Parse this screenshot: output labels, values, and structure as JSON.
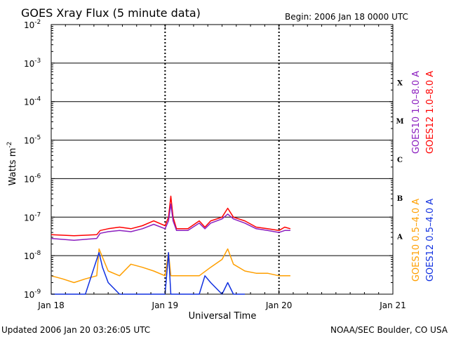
{
  "chart_data": {
    "type": "line",
    "title": "GOES Xray Flux (5 minute data)",
    "begin_label": "Begin:  2006 Jan 18 0000 UTC",
    "xlabel": "Universal Time",
    "ylabel": "Watts m",
    "ylabel_exponent": "-2",
    "y_scale": "log",
    "ylim": [
      1e-09,
      0.01
    ],
    "x_ticks": [
      {
        "label": "Jan 18",
        "day": 0
      },
      {
        "label": "Jan 19",
        "day": 1
      },
      {
        "label": "Jan 20",
        "day": 2
      },
      {
        "label": "Jan 21",
        "day": 3
      }
    ],
    "y_ticks": [
      {
        "base": "10",
        "exp": "-9",
        "value": -9
      },
      {
        "base": "10",
        "exp": "-8",
        "value": -8
      },
      {
        "base": "10",
        "exp": "-7",
        "value": -7
      },
      {
        "base": "10",
        "exp": "-6",
        "value": -6
      },
      {
        "base": "10",
        "exp": "-5",
        "value": -5
      },
      {
        "base": "10",
        "exp": "-4",
        "value": -4
      },
      {
        "base": "10",
        "exp": "-3",
        "value": -3
      },
      {
        "base": "10",
        "exp": "-2",
        "value": -2
      }
    ],
    "flare_classes": [
      {
        "label": "A",
        "value": -7.5
      },
      {
        "label": "B",
        "value": -6.5
      },
      {
        "label": "C",
        "value": -5.5
      },
      {
        "label": "M",
        "value": -4.5
      },
      {
        "label": "X",
        "value": -3.5
      }
    ],
    "grid": "horizontal at each decade from 1e-7 to 1e-3, dotted vertical at day boundaries",
    "series": [
      {
        "name": "GOES12 1.0-8.0 A",
        "color": "#ff0000",
        "x": [
          0,
          0.2,
          0.4,
          0.43,
          0.5,
          0.6,
          0.7,
          0.8,
          0.9,
          1.0,
          1.03,
          1.05,
          1.07,
          1.1,
          1.2,
          1.3,
          1.35,
          1.4,
          1.5,
          1.55,
          1.6,
          1.7,
          1.8,
          1.9,
          2.0,
          2.05,
          2.1
        ],
        "y": [
          3.5e-08,
          3.3e-08,
          3.5e-08,
          4.5e-08,
          5e-08,
          5.5e-08,
          5e-08,
          6e-08,
          8e-08,
          6e-08,
          1e-07,
          3.5e-07,
          1e-07,
          5e-08,
          5e-08,
          8e-08,
          5.5e-08,
          8e-08,
          1e-07,
          1.7e-07,
          1e-07,
          8e-08,
          5.5e-08,
          5e-08,
          4.5e-08,
          5.5e-08,
          5e-08
        ]
      },
      {
        "name": "GOES10 1.0-8.0 A",
        "color": "#8b1fbf",
        "x": [
          0,
          0.2,
          0.4,
          0.43,
          0.5,
          0.6,
          0.7,
          0.8,
          0.9,
          1.0,
          1.03,
          1.05,
          1.07,
          1.1,
          1.2,
          1.3,
          1.35,
          1.4,
          1.5,
          1.55,
          1.6,
          1.7,
          1.8,
          1.9,
          2.0,
          2.05,
          2.1
        ],
        "y": [
          2.8e-08,
          2.5e-08,
          2.8e-08,
          3.8e-08,
          4.2e-08,
          4.5e-08,
          4.2e-08,
          5e-08,
          6.5e-08,
          5e-08,
          8e-08,
          2.2e-07,
          8e-08,
          4.5e-08,
          4.5e-08,
          7e-08,
          5e-08,
          7e-08,
          9e-08,
          1.2e-07,
          9e-08,
          7e-08,
          5e-08,
          4.5e-08,
          4e-08,
          4.5e-08,
          4.5e-08
        ]
      },
      {
        "name": "GOES10 0.5-4.0 A",
        "color": "#ff9f00",
        "x": [
          0,
          0.1,
          0.2,
          0.3,
          0.4,
          0.42,
          0.5,
          0.6,
          0.7,
          0.8,
          0.9,
          1.0,
          1.03,
          1.05,
          1.1,
          1.2,
          1.3,
          1.4,
          1.5,
          1.55,
          1.6,
          1.7,
          1.8,
          1.9,
          2.0,
          2.1
        ],
        "y": [
          3e-09,
          2.5e-09,
          2e-09,
          2.5e-09,
          3e-09,
          1.5e-08,
          4e-09,
          3e-09,
          6e-09,
          5e-09,
          4e-09,
          3e-09,
          1.2e-08,
          3e-09,
          3e-09,
          3e-09,
          3e-09,
          5e-09,
          8e-09,
          1.5e-08,
          6e-09,
          4e-09,
          3.5e-09,
          3.5e-09,
          3e-09,
          3e-09
        ]
      },
      {
        "name": "GOES12 0.5-4.0 A",
        "color": "#1030e0",
        "x": [
          0,
          0.3,
          0.4,
          0.42,
          0.45,
          0.5,
          0.6,
          0.7,
          0.8,
          0.9,
          1.0,
          1.03,
          1.05,
          1.1,
          1.2,
          1.3,
          1.35,
          1.4,
          1.5,
          1.55,
          1.6,
          1.65,
          1.7
        ],
        "y": [
          1e-09,
          1e-09,
          8e-09,
          1.2e-08,
          5e-09,
          2e-09,
          1e-09,
          1e-09,
          1e-09,
          1e-09,
          1e-09,
          1.2e-08,
          1e-09,
          1e-09,
          1e-09,
          1e-09,
          3e-09,
          2e-09,
          1e-09,
          2e-09,
          1e-09,
          1e-09,
          1e-09
        ]
      }
    ],
    "legend_right": [
      {
        "name": "GOES10 1.0-8.0 A",
        "label": "GOES10 1.0–8.0 A",
        "color": "#8b1fbf"
      },
      {
        "name": "GOES12 1.0-8.0 A",
        "label": "GOES12 1.0–8.0 A",
        "color": "#ff0000"
      },
      {
        "name": "GOES10 0.5-4.0 A",
        "label": "GOES10 0.5–4.0 A",
        "color": "#ff9f00"
      },
      {
        "name": "GOES12 0.5-4.0 A",
        "label": "GOES12 0.5–4.0 A",
        "color": "#1030e0"
      }
    ]
  },
  "footer": {
    "updated": "Updated 2006 Jan 20 03:26:05 UTC",
    "credit": "NOAA/SEC Boulder, CO USA"
  }
}
